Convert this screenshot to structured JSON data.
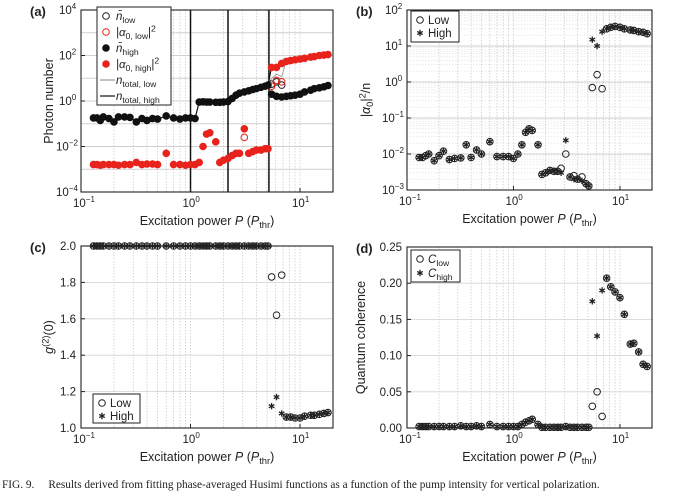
{
  "caption": {
    "label": "FIG. 9.",
    "text": "Results derived from fitting phase-averaged Husimi functions as a function of the pump intensity for vertical polarization."
  },
  "chart_data": [
    {
      "panel": "(a)",
      "type": "scatter",
      "xscale": "log",
      "yscale": "log",
      "xlim": [
        0.1,
        20
      ],
      "ylim": [
        0.0001,
        10000
      ],
      "xticks": [
        0.1,
        1,
        10
      ],
      "yticks": [
        0.0001,
        0.01,
        1,
        100,
        10000
      ],
      "xlabel": {
        "pre": "Excitation power ",
        "var": "P",
        "mid": " (",
        "var2": "P",
        "sub": "thr",
        "post": ")"
      },
      "ylabel": {
        "pre": "Photon number"
      },
      "vlines": [
        1,
        2.2,
        5.2
      ],
      "legend_placement": "top-left",
      "x": [
        0.13,
        0.14,
        0.15,
        0.16,
        0.18,
        0.2,
        0.22,
        0.25,
        0.28,
        0.32,
        0.36,
        0.4,
        0.45,
        0.5,
        0.6,
        0.7,
        0.8,
        0.9,
        1.0,
        1.1,
        1.2,
        1.3,
        1.4,
        1.5,
        1.7,
        1.85,
        2.0,
        2.2,
        2.4,
        2.6,
        2.8,
        3.1,
        3.4,
        3.7,
        4.0,
        4.4,
        4.8,
        5.1,
        5.5,
        6.1,
        6.8,
        7.5,
        8.2,
        9,
        10,
        11,
        12.5,
        13.5,
        15,
        16.5,
        18
      ],
      "series": [
        {
          "name": "n_low",
          "label": {
            "pre": "n̄",
            "sub": "low"
          },
          "marker": "open-circle",
          "color": "#222222",
          "values": [
            null,
            null,
            null,
            null,
            null,
            null,
            null,
            null,
            null,
            null,
            null,
            null,
            null,
            null,
            null,
            null,
            null,
            null,
            null,
            null,
            null,
            null,
            null,
            null,
            null,
            null,
            null,
            null,
            null,
            null,
            null,
            null,
            null,
            null,
            null,
            null,
            null,
            null,
            5.5,
            7,
            5,
            null,
            null,
            null,
            null,
            null,
            null,
            null,
            null,
            null,
            null
          ]
        },
        {
          "name": "alpha0_low_sq",
          "label": {
            "pre": "|α",
            "sub": "0, low",
            "post": "|",
            "sup": "2"
          },
          "marker": "open-circle",
          "color": "#e8231c",
          "values": [
            null,
            null,
            null,
            null,
            null,
            null,
            null,
            null,
            null,
            null,
            null,
            null,
            null,
            null,
            null,
            null,
            null,
            null,
            null,
            null,
            null,
            null,
            null,
            null,
            null,
            null,
            null,
            null,
            null,
            null,
            null,
            0.025,
            null,
            null,
            null,
            null,
            null,
            null,
            4.5,
            8,
            7,
            null,
            null,
            null,
            null,
            null,
            null,
            null,
            null,
            null,
            null
          ]
        },
        {
          "name": "n_high",
          "label": {
            "pre": "n̄",
            "sub": "high"
          },
          "marker": "filled-circle",
          "color": "#111111",
          "values": [
            0.18,
            0.18,
            0.14,
            0.2,
            0.17,
            0.12,
            0.2,
            0.2,
            0.19,
            0.12,
            0.17,
            0.14,
            0.17,
            0.16,
            0.22,
            0.18,
            0.16,
            0.18,
            0.18,
            0.17,
            0.9,
            0.92,
            0.9,
            0.9,
            0.88,
            0.88,
            0.9,
            0.95,
            1.3,
            1.8,
            2.2,
            2.5,
            2.8,
            3.2,
            3.5,
            4,
            4.5,
            5,
            2,
            1.6,
            1.5,
            1.6,
            1.7,
            1.8,
            2,
            2.5,
            3,
            3.5,
            3.8,
            4.2,
            4.8
          ]
        },
        {
          "name": "alpha0_high_sq",
          "label": {
            "pre": "|α",
            "sub": "0, high",
            "post": "|",
            "sup": "2"
          },
          "marker": "filled-circle",
          "color": "#e8231c",
          "values": [
            0.0016,
            0.0016,
            0.0015,
            0.0016,
            0.0016,
            0.0016,
            0.0015,
            0.0016,
            0.0016,
            0.002,
            0.0016,
            0.0017,
            0.0017,
            0.0016,
            0.005,
            0.0016,
            0.0016,
            0.0015,
            0.0016,
            0.0016,
            0.002,
            0.01,
            0.035,
            0.04,
            0.016,
            0.002,
            0.0025,
            0.003,
            0.004,
            0.005,
            0.005,
            0.06,
            0.005,
            0.006,
            0.007,
            0.007,
            0.008,
            0.008,
            30,
            30,
            45,
            55,
            60,
            65,
            70,
            75,
            85,
            90,
            100,
            105,
            110
          ]
        },
        {
          "name": "n_total_low",
          "label": {
            "pre": "n",
            "sub": "total, low"
          },
          "marker": "line",
          "color": "#999999",
          "values": [
            0.18,
            0.18,
            0.14,
            0.2,
            0.17,
            0.12,
            0.2,
            0.2,
            0.19,
            0.12,
            0.17,
            0.14,
            0.17,
            0.16,
            0.22,
            0.18,
            0.16,
            0.18,
            0.18,
            0.17,
            0.9,
            0.93,
            0.93,
            0.94,
            0.9,
            0.88,
            0.9,
            0.95,
            1.3,
            1.8,
            2.2,
            2.5,
            2.8,
            3.2,
            3.5,
            4,
            4.5,
            5,
            10,
            15,
            12,
            57,
            62,
            67,
            72,
            78,
            88,
            94,
            104,
            109,
            115
          ]
        },
        {
          "name": "n_total_high",
          "label": {
            "pre": "n",
            "sub": "total, high"
          },
          "marker": "line",
          "color": "#111111",
          "values": [
            0.18,
            0.18,
            0.14,
            0.2,
            0.17,
            0.12,
            0.2,
            0.2,
            0.19,
            0.12,
            0.17,
            0.14,
            0.17,
            0.16,
            0.22,
            0.18,
            0.16,
            0.18,
            0.18,
            0.17,
            0.9,
            0.93,
            0.93,
            0.94,
            0.9,
            0.88,
            0.9,
            0.95,
            1.3,
            1.8,
            2.2,
            2.5,
            2.8,
            3.2,
            3.5,
            4,
            4.5,
            5,
            32,
            32,
            47,
            57,
            62,
            67,
            72,
            78,
            88,
            94,
            104,
            109,
            115
          ]
        }
      ]
    },
    {
      "panel": "(b)",
      "type": "scatter",
      "xscale": "log",
      "yscale": "log",
      "xlim": [
        0.1,
        20
      ],
      "ylim": [
        0.001,
        100
      ],
      "xticks": [
        0.1,
        1,
        10
      ],
      "yticks": [
        0.001,
        0.01,
        0.1,
        1,
        10,
        100
      ],
      "xlabel": {
        "pre": "Excitation power ",
        "var": "P",
        "mid": " (",
        "var2": "P",
        "sub": "thr",
        "post": ")"
      },
      "ylabel": {
        "pre": "|α",
        "sub": "0",
        "post": "|",
        "sup": "2",
        "tail": "/n"
      },
      "legend_placement": "top-left",
      "x": [
        0.13,
        0.14,
        0.15,
        0.16,
        0.18,
        0.2,
        0.22,
        0.25,
        0.28,
        0.32,
        0.36,
        0.4,
        0.45,
        0.5,
        0.6,
        0.7,
        0.8,
        0.9,
        1.0,
        1.1,
        1.2,
        1.3,
        1.4,
        1.5,
        1.7,
        1.85,
        2.0,
        2.2,
        2.4,
        2.6,
        2.8,
        3.1,
        3.4,
        3.7,
        4.0,
        4.4,
        4.8,
        5.1,
        5.5,
        6.1,
        6.8,
        7.5,
        8.2,
        9,
        10,
        11,
        12.5,
        13.5,
        15,
        16.5,
        18
      ],
      "series": [
        {
          "name": "Low",
          "label": {
            "pre": "Low"
          },
          "marker": "open-circle",
          "color": "#222222",
          "values": [
            0.008,
            0.008,
            0.009,
            0.01,
            0.0065,
            0.009,
            0.012,
            0.007,
            0.0075,
            0.0078,
            0.018,
            0.008,
            0.013,
            0.01,
            0.022,
            0.0085,
            0.0085,
            0.0085,
            0.0075,
            0.01,
            0.018,
            0.04,
            0.05,
            0.045,
            0.018,
            0.0027,
            0.003,
            0.0035,
            0.0033,
            0.0033,
            0.004,
            0.01,
            0.0023,
            0.0025,
            0.002,
            0.0023,
            0.0015,
            0.0013,
            0.7,
            1.6,
            0.65,
            30,
            33,
            35,
            33,
            30,
            28,
            27,
            25,
            24,
            22
          ]
        },
        {
          "name": "High",
          "label": {
            "pre": "High"
          },
          "marker": "star",
          "color": "#222222",
          "values": [
            0.008,
            0.008,
            0.009,
            0.01,
            0.0065,
            0.009,
            0.012,
            0.007,
            0.0075,
            0.0078,
            0.018,
            0.008,
            0.013,
            0.01,
            0.022,
            0.0085,
            0.0085,
            0.0085,
            0.0075,
            0.01,
            0.018,
            0.04,
            0.05,
            0.045,
            0.018,
            0.0027,
            0.003,
            0.0035,
            0.0033,
            0.0033,
            0.003,
            0.024,
            0.0023,
            0.002,
            0.002,
            0.0018,
            0.0015,
            0.0013,
            15,
            10,
            25,
            30,
            33,
            35,
            33,
            30,
            28,
            27,
            25,
            24,
            22
          ]
        }
      ]
    },
    {
      "panel": "(c)",
      "type": "scatter",
      "xscale": "log",
      "yscale": "linear",
      "xlim": [
        0.1,
        20
      ],
      "ylim": [
        1.0,
        2.0
      ],
      "xticks": [
        0.1,
        1,
        10
      ],
      "yticks": [
        1.0,
        1.2,
        1.4,
        1.6,
        1.8,
        2.0
      ],
      "xlabel": {
        "pre": "Excitation power ",
        "var": "P",
        "mid": " (",
        "var2": "P",
        "sub": "thr",
        "post": ")"
      },
      "ylabel": {
        "pre": "g",
        "sup": "(2)",
        "tail": "(0)"
      },
      "legend_placement": "bottom-left",
      "x": [
        0.13,
        0.14,
        0.15,
        0.16,
        0.18,
        0.2,
        0.22,
        0.25,
        0.28,
        0.32,
        0.36,
        0.4,
        0.45,
        0.5,
        0.6,
        0.7,
        0.8,
        0.9,
        1.0,
        1.1,
        1.2,
        1.3,
        1.4,
        1.5,
        1.7,
        1.85,
        2.0,
        2.2,
        2.4,
        2.6,
        2.8,
        3.1,
        3.4,
        3.7,
        4.0,
        4.4,
        4.8,
        5.1,
        5.5,
        6.1,
        6.8,
        7.5,
        8.2,
        9,
        10,
        11,
        12.5,
        13.5,
        15,
        16.5,
        18
      ],
      "series": [
        {
          "name": "Low",
          "label": {
            "pre": "Low"
          },
          "marker": "open-circle",
          "color": "#222222",
          "values": [
            2,
            2,
            2,
            2,
            2,
            2,
            2,
            2,
            2,
            2,
            2,
            2,
            2,
            2,
            2,
            2,
            2,
            2,
            2,
            2,
            2,
            2,
            2,
            2,
            2,
            2,
            2,
            2,
            2,
            2,
            2,
            2,
            2,
            2,
            2,
            2,
            2,
            2,
            1.83,
            1.62,
            1.84,
            1.06,
            1.06,
            1.055,
            1.055,
            1.065,
            1.07,
            1.07,
            1.075,
            1.08,
            1.085
          ]
        },
        {
          "name": "High",
          "label": {
            "pre": "High"
          },
          "marker": "star",
          "color": "#222222",
          "values": [
            2,
            2,
            2,
            2,
            2,
            2,
            2,
            2,
            2,
            2,
            2,
            2,
            2,
            2,
            2,
            2,
            2,
            2,
            2,
            2,
            2,
            2,
            2,
            2,
            2,
            2,
            2,
            2,
            2,
            2,
            2,
            2,
            2,
            2,
            2,
            2,
            2,
            2,
            1.12,
            1.17,
            1.08,
            1.06,
            1.06,
            1.055,
            1.055,
            1.065,
            1.07,
            1.07,
            1.075,
            1.08,
            1.085
          ]
        }
      ]
    },
    {
      "panel": "(d)",
      "type": "scatter",
      "xscale": "log",
      "yscale": "linear",
      "xlim": [
        0.1,
        20
      ],
      "ylim": [
        0,
        0.25
      ],
      "xticks": [
        0.1,
        1,
        10
      ],
      "yticks": [
        0,
        0.05,
        0.1,
        0.15,
        0.2,
        0.25
      ],
      "ytickformat": 2,
      "xlabel": {
        "pre": "Excitation power ",
        "var": "P",
        "mid": " (",
        "var2": "P",
        "sub": "thr",
        "post": ")"
      },
      "ylabel": {
        "pre": "Quantum coherence"
      },
      "legend_placement": "top-left",
      "x": [
        0.13,
        0.14,
        0.15,
        0.16,
        0.18,
        0.2,
        0.22,
        0.25,
        0.28,
        0.32,
        0.36,
        0.4,
        0.45,
        0.5,
        0.6,
        0.7,
        0.8,
        0.9,
        1.0,
        1.1,
        1.2,
        1.3,
        1.4,
        1.5,
        1.7,
        1.85,
        2.0,
        2.2,
        2.4,
        2.6,
        2.8,
        3.1,
        3.4,
        3.7,
        4.0,
        4.4,
        4.8,
        5.1,
        5.5,
        6.1,
        6.8,
        7.5,
        8.2,
        9,
        10,
        11,
        12.5,
        13.5,
        15,
        16.5,
        18
      ],
      "series": [
        {
          "name": "C_low",
          "label": {
            "pre": "C",
            "sub": "low"
          },
          "marker": "open-circle",
          "color": "#222222",
          "values": [
            0.002,
            0.002,
            0.002,
            0.002,
            0.002,
            0.002,
            0.002,
            0.002,
            0.002,
            0.003,
            0.002,
            0.002,
            0.003,
            0.002,
            0.005,
            0.002,
            0.002,
            0.002,
            0.002,
            0.002,
            0.005,
            0.008,
            0.01,
            0.012,
            0.005,
            0.001,
            0.001,
            0.001,
            0.001,
            0.001,
            0.001,
            0.002,
            0.001,
            0.001,
            0.001,
            0.001,
            0.001,
            0.001,
            0.03,
            0.05,
            0.016,
            0.207,
            0.195,
            0.188,
            0.18,
            0.157,
            0.116,
            0.117,
            0.105,
            0.088,
            0.085
          ]
        },
        {
          "name": "C_high",
          "label": {
            "pre": "C",
            "sub": "high"
          },
          "marker": "star",
          "color": "#222222",
          "values": [
            0.002,
            0.002,
            0.002,
            0.002,
            0.002,
            0.002,
            0.002,
            0.002,
            0.002,
            0.003,
            0.002,
            0.002,
            0.003,
            0.002,
            0.005,
            0.002,
            0.002,
            0.002,
            0.002,
            0.002,
            0.005,
            0.008,
            0.01,
            0.012,
            0.005,
            0.001,
            0.001,
            0.001,
            0.001,
            0.001,
            0.001,
            0.002,
            0.001,
            0.001,
            0.001,
            0.001,
            0.001,
            0.001,
            0.175,
            0.127,
            0.19,
            0.207,
            0.195,
            0.188,
            0.18,
            0.157,
            0.116,
            0.117,
            0.105,
            0.088,
            0.085
          ]
        }
      ]
    }
  ]
}
